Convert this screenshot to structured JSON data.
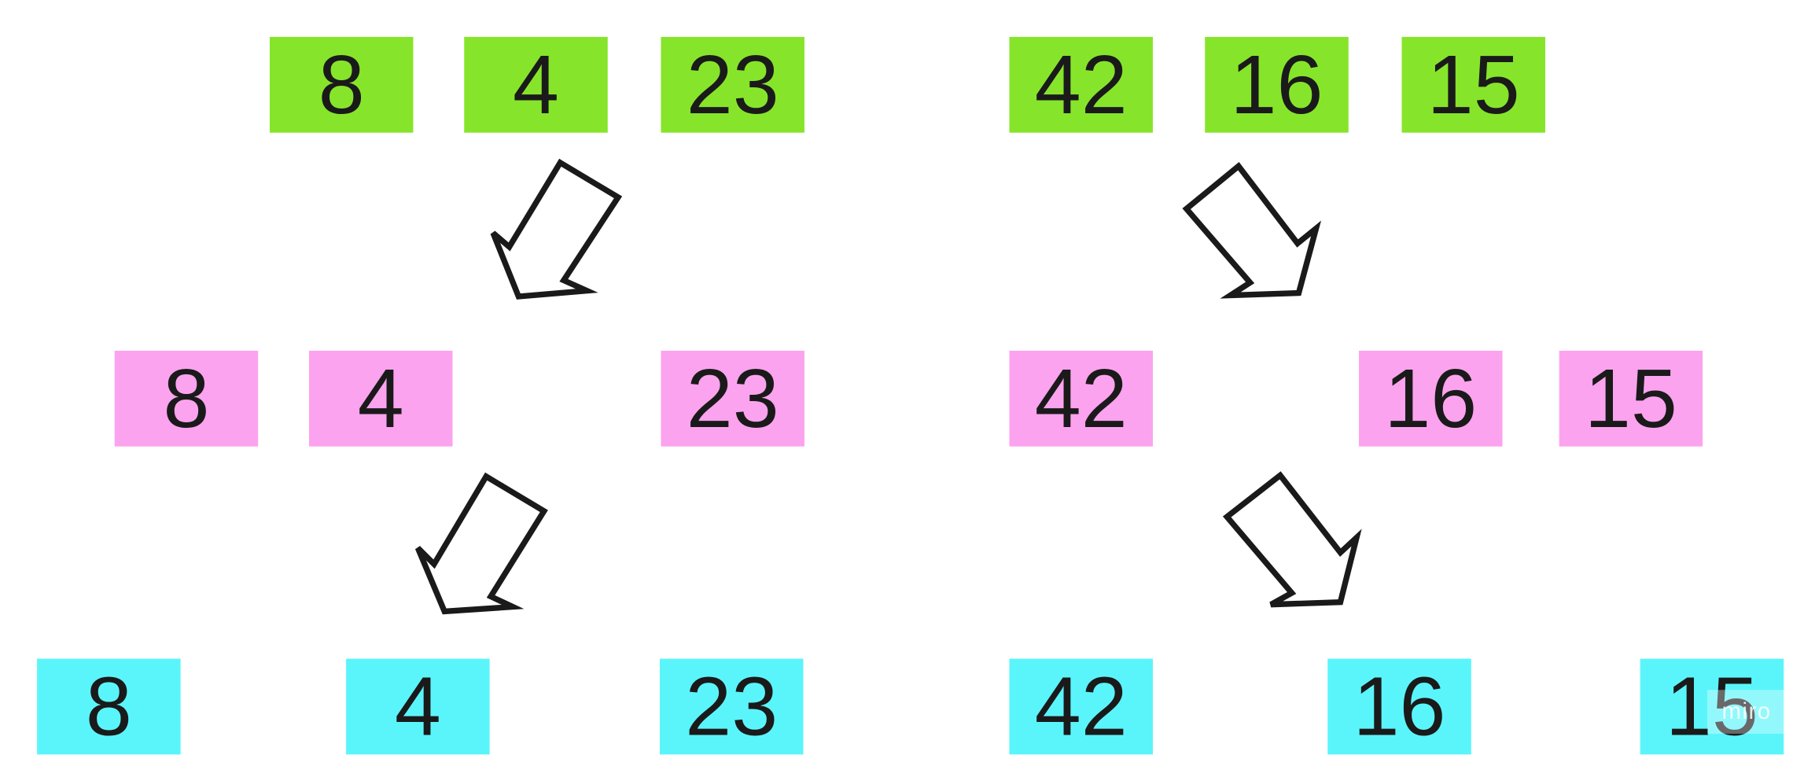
{
  "rows": {
    "top": [
      "8",
      "4",
      "23",
      "42",
      "16",
      "15"
    ],
    "middle": [
      "8",
      "4",
      "23",
      "42",
      "16",
      "15"
    ],
    "bottom": [
      "8",
      "4",
      "23",
      "42",
      "16",
      "15"
    ]
  },
  "colors": {
    "top": "#86e52a",
    "middle": "#fca3ef",
    "bottom": "#5af5fb",
    "arrow_stroke": "#1a1a1a",
    "text": "#1a1a1a"
  },
  "watermark": "miro"
}
